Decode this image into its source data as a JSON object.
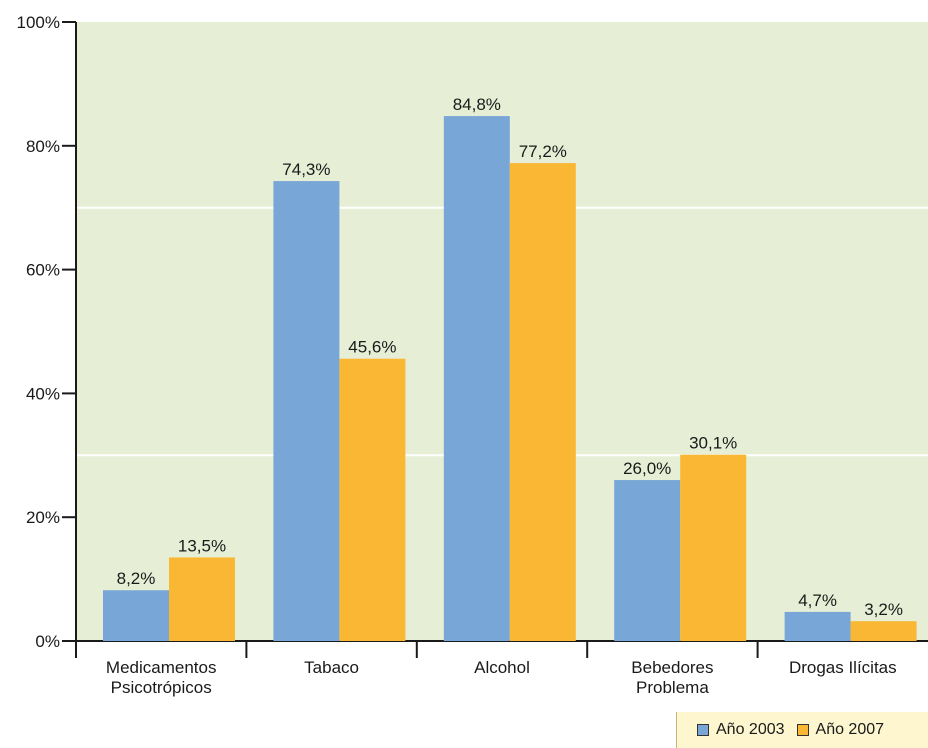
{
  "chart_data": {
    "type": "bar",
    "categories": [
      [
        "Medicamentos",
        "Psicotrópicos"
      ],
      [
        "Tabaco"
      ],
      [
        "Alcohol"
      ],
      [
        "Bebedores",
        "Problema"
      ],
      [
        "Drogas Ilícitas"
      ]
    ],
    "series": [
      {
        "name": "Año 2003",
        "color": "#78a6d6",
        "values": [
          8.2,
          74.3,
          84.8,
          26.0,
          4.7
        ],
        "labels": [
          "8,2%",
          "74,3%",
          "84,8%",
          "26,0%",
          "4,7%"
        ]
      },
      {
        "name": "Año 2007",
        "color": "#f9b733",
        "values": [
          13.5,
          45.6,
          77.2,
          30.1,
          3.2
        ],
        "labels": [
          "13,5%",
          "45,6%",
          "77,2%",
          "30,1%",
          "3,2%"
        ]
      }
    ],
    "ylim": [
      0,
      100
    ],
    "yticks": [
      "0%",
      "20%",
      "40%",
      "60%",
      "80%",
      "100%"
    ],
    "plot_background": "#e6efd6",
    "grid": true,
    "legend_position": "bottom-right"
  }
}
